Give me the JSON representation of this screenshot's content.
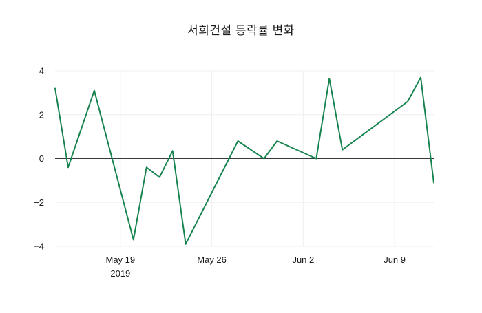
{
  "chart_data": {
    "type": "line",
    "title": "서희건설 등락률 변화",
    "xlabel": "",
    "ylabel": "",
    "grid": "faint",
    "legend": "none",
    "zero_line": {
      "value": 0,
      "color": "#3a3a3a"
    },
    "xlim_days": [
      0,
      29
    ],
    "ylim": [
      -4,
      4
    ],
    "x_epoch_date": "2019-05-14",
    "series": [
      {
        "name": "등락률",
        "color": "#17834f",
        "dates": [
          "2019-05-14",
          "2019-05-15",
          "2019-05-17",
          "2019-05-20",
          "2019-05-21",
          "2019-05-22",
          "2019-05-23",
          "2019-05-24",
          "2019-05-28",
          "2019-05-30",
          "2019-05-31",
          "2019-06-03",
          "2019-06-04",
          "2019-06-05",
          "2019-06-10",
          "2019-06-11",
          "2019-06-12"
        ],
        "x_days": [
          0,
          1,
          3,
          6,
          7,
          8,
          9,
          10,
          14,
          16,
          17,
          20,
          21,
          22,
          27,
          28,
          29
        ],
        "values": [
          3.2,
          -0.4,
          3.1,
          -3.7,
          -0.4,
          -0.85,
          0.35,
          -3.9,
          0.8,
          0.0,
          0.8,
          0.0,
          3.65,
          0.4,
          2.6,
          3.7,
          -1.1
        ]
      }
    ],
    "xticks": [
      {
        "day": 5,
        "label": "May 19",
        "sublabel": "2019"
      },
      {
        "day": 12,
        "label": "May 26",
        "sublabel": ""
      },
      {
        "day": 19,
        "label": "Jun 2",
        "sublabel": ""
      },
      {
        "day": 26,
        "label": "Jun 9",
        "sublabel": ""
      }
    ],
    "yticks": [
      {
        "value": -4,
        "label": "−4"
      },
      {
        "value": -2,
        "label": "−2"
      },
      {
        "value": 0,
        "label": "0"
      },
      {
        "value": 2,
        "label": "2"
      },
      {
        "value": 4,
        "label": "4"
      }
    ]
  }
}
